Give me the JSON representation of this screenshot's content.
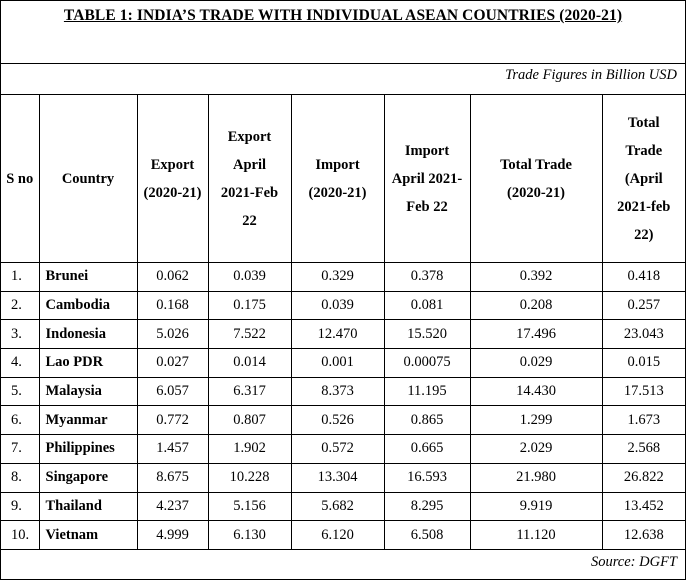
{
  "title": "TABLE 1: INDIA’S TRADE WITH INDIVIDUAL ASEAN COUNTRIES (2020-21)",
  "units_note": "Trade Figures in Billion USD",
  "headers": {
    "sno": "S no",
    "country": "Country",
    "export_2020_21": "Export (2020-21)",
    "export_apr_feb": "Export April 2021-Feb 22",
    "import_2020_21": "Import (2020-21)",
    "import_apr_feb": "Import April 2021- Feb 22",
    "total_2020_21": "Total Trade (2020-21)",
    "total_apr_feb": "Total Trade (April 2021-feb 22)"
  },
  "rows": [
    {
      "sno": "1.",
      "country": "Brunei",
      "exp1": "0.062",
      "exp2": "0.039",
      "imp1": "0.329",
      "imp2": "0.378",
      "tot1": "0.392",
      "tot2": "0.418"
    },
    {
      "sno": "2.",
      "country": "Cambodia",
      "exp1": "0.168",
      "exp2": "0.175",
      "imp1": "0.039",
      "imp2": "0.081",
      "tot1": "0.208",
      "tot2": "0.257"
    },
    {
      "sno": "3.",
      "country": "Indonesia",
      "exp1": "5.026",
      "exp2": "7.522",
      "imp1": "12.470",
      "imp2": "15.520",
      "tot1": "17.496",
      "tot2": "23.043"
    },
    {
      "sno": "4.",
      "country": "Lao PDR",
      "exp1": "0.027",
      "exp2": "0.014",
      "imp1": "0.001",
      "imp2": "0.00075",
      "tot1": "0.029",
      "tot2": "0.015"
    },
    {
      "sno": "5.",
      "country": "Malaysia",
      "exp1": "6.057",
      "exp2": "6.317",
      "imp1": "8.373",
      "imp2": "11.195",
      "tot1": "14.430",
      "tot2": "17.513"
    },
    {
      "sno": "6.",
      "country": "Myanmar",
      "exp1": "0.772",
      "exp2": "0.807",
      "imp1": "0.526",
      "imp2": "0.865",
      "tot1": "1.299",
      "tot2": "1.673"
    },
    {
      "sno": "7.",
      "country": "Philippines",
      "exp1": "1.457",
      "exp2": "1.902",
      "imp1": "0.572",
      "imp2": "0.665",
      "tot1": "2.029",
      "tot2": "2.568"
    },
    {
      "sno": "8.",
      "country": "Singapore",
      "exp1": "8.675",
      "exp2": "10.228",
      "imp1": "13.304",
      "imp2": "16.593",
      "tot1": "21.980",
      "tot2": "26.822"
    },
    {
      "sno": "9.",
      "country": "Thailand",
      "exp1": "4.237",
      "exp2": "5.156",
      "imp1": "5.682",
      "imp2": "8.295",
      "tot1": "9.919",
      "tot2": "13.452"
    },
    {
      "sno": "10.",
      "country": "Vietnam",
      "exp1": "4.999",
      "exp2": "6.130",
      "imp1": "6.120",
      "imp2": "6.508",
      "tot1": "11.120",
      "tot2": "12.638"
    }
  ],
  "source": "Source: DGFT"
}
